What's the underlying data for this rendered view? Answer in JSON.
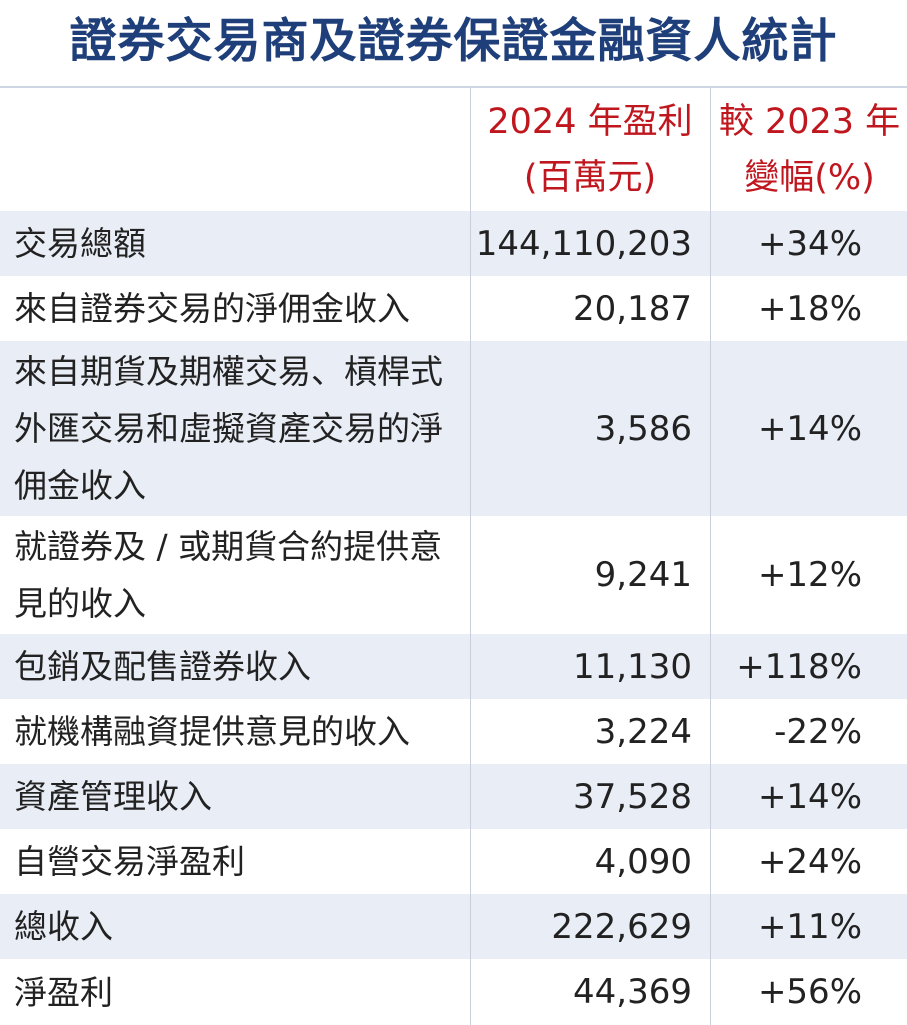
{
  "title": "證券交易商及證券保證金融資人統計",
  "header": {
    "col_value_line1": "2024 年盈利",
    "col_value_line2": "(百萬元)",
    "col_change_line1": "較 2023 年",
    "col_change_line2": "變幅(%)"
  },
  "colors": {
    "title": "#1f3f7a",
    "header": "#c0161e",
    "row_shade": "#e9edf6"
  },
  "chart_data": {
    "type": "table",
    "title": "證券交易商及證券保證金融資人統計",
    "columns": [
      "",
      "2024 年盈利 (百萬元)",
      "較 2023 年變幅(%)"
    ],
    "rows": [
      {
        "label": "交易總額",
        "value": "144,110,203",
        "change": "+34%"
      },
      {
        "label": "來自證券交易的淨佣金收入",
        "value": "20,187",
        "change": "+18%"
      },
      {
        "label": "來自期貨及期權交易、槓桿式外匯交易和虛擬資產交易的淨佣金收入",
        "value": "3,586",
        "change": "+14%"
      },
      {
        "label": "就證券及 / 或期貨合約提供意見的收入",
        "value": "9,241",
        "change": "+12%"
      },
      {
        "label": "包銷及配售證券收入",
        "value": "11,130",
        "change": "+118%"
      },
      {
        "label": "就機構融資提供意見的收入",
        "value": "3,224",
        "change": "-22%"
      },
      {
        "label": "資產管理收入",
        "value": "37,528",
        "change": "+14%"
      },
      {
        "label": "自營交易淨盈利",
        "value": "4,090",
        "change": "+24%"
      },
      {
        "label": "總收入",
        "value": "222,629",
        "change": "+11%"
      },
      {
        "label": "淨盈利",
        "value": "44,369",
        "change": "+56%"
      }
    ]
  }
}
